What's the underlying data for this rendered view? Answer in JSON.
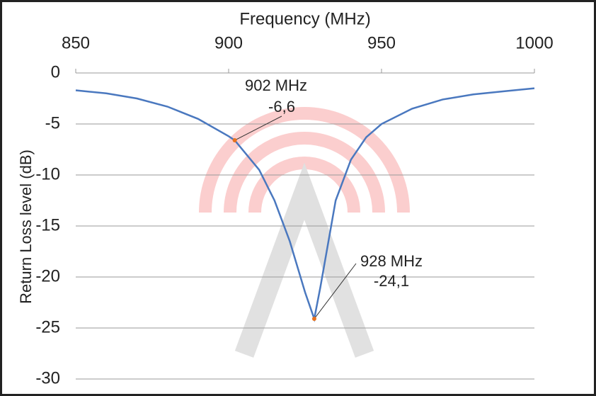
{
  "chart_data": {
    "type": "line",
    "title": "Frequency (MHz)",
    "y_label": "Return Loss level (dB)",
    "x": [
      850,
      860,
      870,
      880,
      890,
      900,
      902,
      910,
      915,
      920,
      925,
      928,
      930,
      935,
      940,
      945,
      950,
      960,
      970,
      980,
      990,
      1000
    ],
    "series": [
      {
        "color": "#4a78bf",
        "values": [
          -1.7,
          -2.0,
          -2.5,
          -3.3,
          -4.5,
          -6.2,
          -6.6,
          -9.5,
          -12.5,
          -16.5,
          -21.5,
          -24.1,
          -21,
          -12.5,
          -8.5,
          -6.3,
          -5.0,
          -3.5,
          -2.6,
          -2.1,
          -1.8,
          -1.5
        ]
      }
    ],
    "xlim": [
      850,
      1000
    ],
    "xticks": [
      850,
      900,
      950,
      1000
    ],
    "ylim": [
      -30,
      0
    ],
    "yticks": [
      0,
      -5,
      -10,
      -15,
      -20,
      -25,
      -30
    ],
    "grid": true,
    "annotations": [
      {
        "label": "902 MHz",
        "x": 902,
        "value": -6.6,
        "value_label": "-6,6",
        "color": "#e8711c"
      },
      {
        "label": "928 MHz",
        "x": 928,
        "value": -24.1,
        "value_label": "-24,1",
        "color": "#e8711c"
      }
    ]
  }
}
